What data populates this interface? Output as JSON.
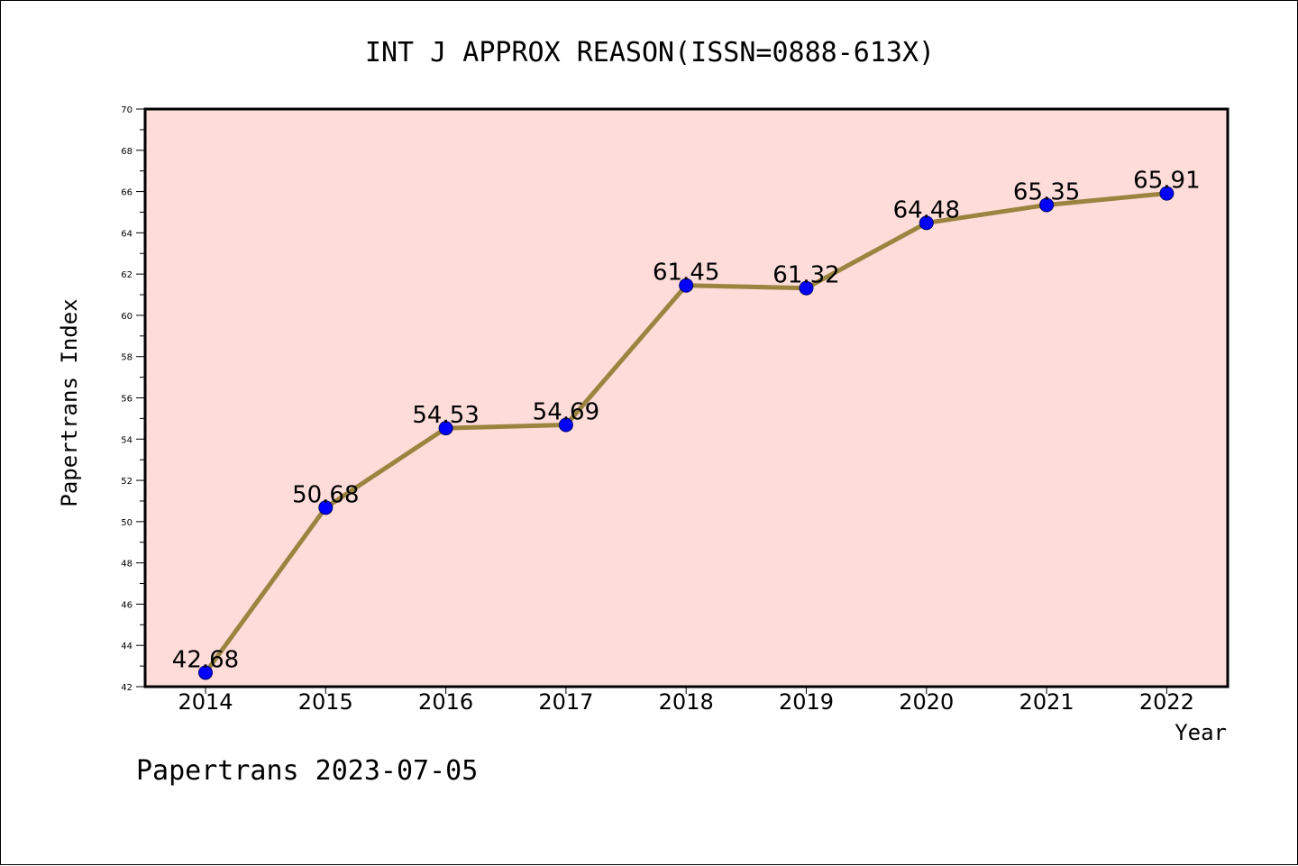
{
  "chart_data": {
    "type": "line",
    "title": "INT J APPROX REASON(ISSN=0888-613X)",
    "xlabel": "Year",
    "ylabel": "Papertrans Index",
    "categories": [
      "2014",
      "2015",
      "2016",
      "2017",
      "2018",
      "2019",
      "2020",
      "2021",
      "2022"
    ],
    "series": [
      {
        "values": [
          42.68,
          50.68,
          54.53,
          54.69,
          61.45,
          61.32,
          64.48,
          65.35,
          65.91
        ]
      }
    ],
    "data_labels": [
      "42.68",
      "50.68",
      "54.53",
      "54.69",
      "61.45",
      "61.32",
      "64.48",
      "65.35",
      "65.91"
    ],
    "ylim": [
      42,
      70
    ],
    "yticks": [
      42,
      44,
      46,
      48,
      50,
      52,
      54,
      56,
      58,
      60,
      62,
      64,
      66,
      68,
      70
    ],
    "grid": false,
    "legend": "none",
    "colors": {
      "plot_background": "#fddcd9",
      "line": "#9a8440",
      "marker": "#0000ff"
    }
  },
  "footer": "Papertrans 2023-07-05"
}
